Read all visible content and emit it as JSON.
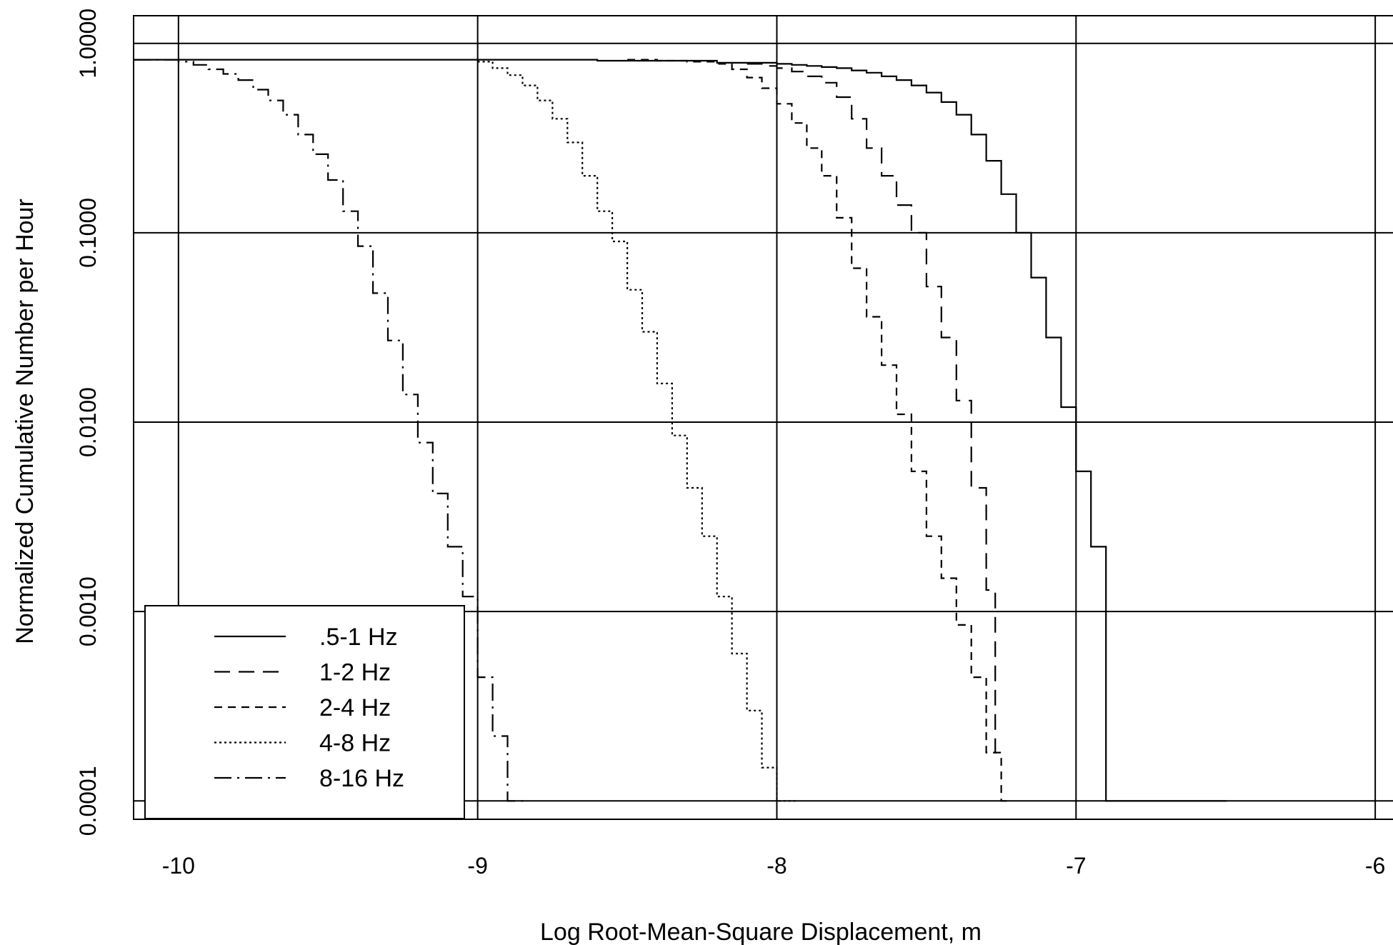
{
  "chart_data": {
    "type": "line",
    "title": "",
    "xlabel": "Log Root-Mean-Square Displacement, m",
    "ylabel": "Normalized Cumulative Number per Hour",
    "xlim": [
      -10.15,
      -5.9
    ],
    "ylim": [
      8e-05,
      1.4
    ],
    "y_scale": "log",
    "grid": true,
    "step_plot": true,
    "legend_position": "bottom-left",
    "x_ticks": [
      -10,
      -9,
      -8,
      -7,
      -6
    ],
    "x_tick_labels": [
      "-10",
      "-9",
      "-8",
      "-7",
      "-6"
    ],
    "y_ticks": [
      0.0001,
      0.001,
      0.01,
      0.1,
      1
    ],
    "y_tick_labels": [
      "0.0001",
      "0.0010",
      "0.0100",
      "0.1000",
      "1.0000"
    ],
    "series": [
      {
        "name": ".5-1 Hz",
        "dash": "",
        "x": [
          -10.15,
          -9.0,
          -8.6,
          -8.2,
          -8.0,
          -7.95,
          -7.9,
          -7.85,
          -7.8,
          -7.75,
          -7.7,
          -7.65,
          -7.6,
          -7.55,
          -7.5,
          -7.45,
          -7.4,
          -7.35,
          -7.3,
          -7.25,
          -7.2,
          -7.15,
          -7.1,
          -7.05,
          -7.0,
          -6.95,
          -6.9
        ],
        "y": [
          0.82,
          0.82,
          0.81,
          0.79,
          0.78,
          0.77,
          0.76,
          0.75,
          0.74,
          0.72,
          0.7,
          0.67,
          0.64,
          0.6,
          0.55,
          0.49,
          0.42,
          0.33,
          0.24,
          0.16,
          0.1,
          0.058,
          0.028,
          0.012,
          0.0055,
          0.0022,
          0.0001
        ]
      },
      {
        "name": "1-2 Hz",
        "dash": "22 12",
        "x": [
          -8.1,
          -8.05,
          -8.0,
          -7.95,
          -7.9,
          -7.85,
          -7.8,
          -7.75,
          -7.7,
          -7.65,
          -7.6,
          -7.55,
          -7.5,
          -7.45,
          -7.4,
          -7.35,
          -7.3,
          -7.27
        ],
        "y": [
          0.78,
          0.76,
          0.74,
          0.71,
          0.67,
          0.62,
          0.52,
          0.4,
          0.28,
          0.2,
          0.14,
          0.1,
          0.052,
          0.028,
          0.013,
          0.0045,
          0.0013,
          0.00018
        ]
      },
      {
        "name": "2-4 Hz",
        "dash": "11 8",
        "x": [
          -8.5,
          -8.4,
          -8.3,
          -8.2,
          -8.15,
          -8.1,
          -8.05,
          -8.0,
          -7.95,
          -7.9,
          -7.85,
          -7.8,
          -7.75,
          -7.7,
          -7.65,
          -7.6,
          -7.55,
          -7.5,
          -7.45,
          -7.4,
          -7.35,
          -7.3,
          -7.25
        ],
        "y": [
          0.82,
          0.81,
          0.8,
          0.78,
          0.73,
          0.66,
          0.58,
          0.48,
          0.38,
          0.28,
          0.2,
          0.12,
          0.065,
          0.036,
          0.02,
          0.011,
          0.0055,
          0.0025,
          0.0015,
          0.00085,
          0.00045,
          0.00018,
          0.0001
        ]
      },
      {
        "name": "4-8 Hz",
        "dash": "3 4",
        "x": [
          -9.0,
          -8.95,
          -8.9,
          -8.85,
          -8.8,
          -8.75,
          -8.7,
          -8.65,
          -8.6,
          -8.55,
          -8.5,
          -8.45,
          -8.4,
          -8.35,
          -8.3,
          -8.25,
          -8.2,
          -8.15,
          -8.1,
          -8.05,
          -8.0,
          -7.95
        ],
        "y": [
          0.8,
          0.74,
          0.68,
          0.6,
          0.5,
          0.4,
          0.3,
          0.2,
          0.13,
          0.09,
          0.05,
          0.03,
          0.016,
          0.0085,
          0.0045,
          0.0025,
          0.0012,
          0.0006,
          0.0003,
          0.00015,
          0.0001,
          0.0001
        ]
      },
      {
        "name": "8-16 Hz",
        "dash": "24 8 3 8",
        "x": [
          -10.15,
          -10.0,
          -9.95,
          -9.9,
          -9.85,
          -9.8,
          -9.75,
          -9.7,
          -9.65,
          -9.6,
          -9.55,
          -9.5,
          -9.45,
          -9.4,
          -9.35,
          -9.3,
          -9.25,
          -9.2,
          -9.15,
          -9.1,
          -9.05,
          -9.0,
          -8.95,
          -8.9
        ],
        "y": [
          0.82,
          0.8,
          0.77,
          0.73,
          0.69,
          0.64,
          0.57,
          0.5,
          0.42,
          0.33,
          0.26,
          0.19,
          0.13,
          0.085,
          0.048,
          0.027,
          0.014,
          0.0078,
          0.0042,
          0.0022,
          0.0012,
          0.00045,
          0.00022,
          0.0001
        ]
      }
    ]
  }
}
